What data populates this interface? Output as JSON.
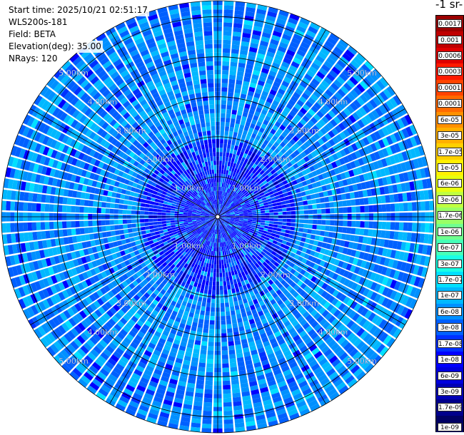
{
  "info": {
    "start_time": "Start time: 2025/10/21 02:51:17",
    "instrument": "WLS200s-181",
    "field": "Field: BETA",
    "elevation": "Elevation(deg): 35.00",
    "nrays": "NRays: 120"
  },
  "colorbar": {
    "title": "-1 sr-",
    "labels": [
      "0.0017",
      "0.001",
      "0.0006",
      "0.0003",
      "0.00017",
      "0.0001",
      "6e-05",
      "3e-05",
      "1.7e-05",
      "1e-05",
      "6e-06",
      "3e-06",
      "1.7e-06",
      "1e-06",
      "6e-07",
      "3e-07",
      "1.7e-07",
      "1e-07",
      "6e-08",
      "3e-08",
      "1.7e-08",
      "1e-08",
      "6e-09",
      "3e-09",
      "1.7e-09",
      "1e-09"
    ],
    "colors": [
      "#9b0000",
      "#bf0000",
      "#e00000",
      "#ff1a00",
      "#ff4400",
      "#ff6a00",
      "#ff9000",
      "#ffb000",
      "#ffd000",
      "#fff000",
      "#e8ff10",
      "#c0ff40",
      "#99ff66",
      "#70ff8f",
      "#46ffb8",
      "#1affe5",
      "#00e0ff",
      "#00b8ff",
      "#0090ff",
      "#0060ff",
      "#0030ff",
      "#0000ff",
      "#0000dd",
      "#0000b5",
      "#00008c",
      "#000064"
    ]
  },
  "chart_data": {
    "type": "heatmap",
    "title": "",
    "projection": "polar PPI",
    "n_rays": 120,
    "max_range_km": 5.4,
    "range_rings_km": [
      1.0,
      2.0,
      3.0,
      4.0,
      5.0
    ],
    "ring_labels": [
      "1.00km",
      "2.00km",
      "3.00km",
      "4.00km",
      "5.00km"
    ],
    "dominant_value_range": [
      3e-08,
      1.7e-07
    ],
    "near_center_value_range": [
      1e-08,
      3e-08
    ],
    "grid": true
  }
}
